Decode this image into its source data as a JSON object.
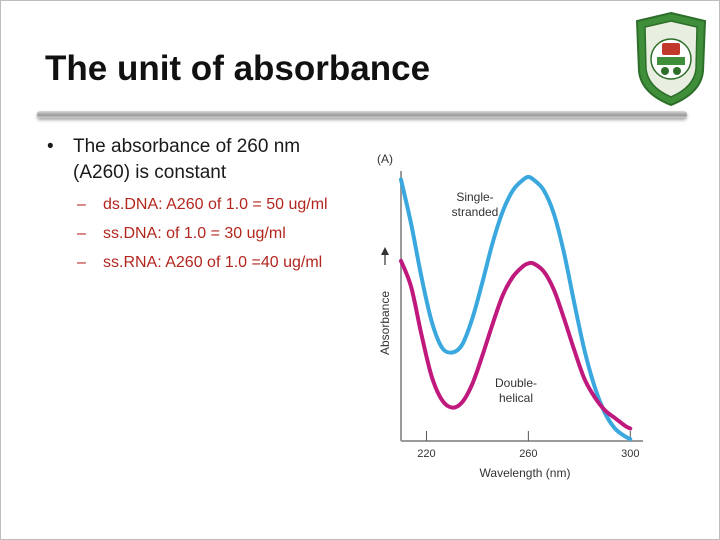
{
  "slide": {
    "title": "The unit of absorbance",
    "bullet": "The absorbance of 260 nm (A260) is constant",
    "sub_bullets": [
      "ds.DNA: A260 of 1.0 = 50 ug/ml",
      "ss.DNA: of 1.0 = 30 ug/ml",
      "ss.RNA: A260 of 1.0 =40 ug/ml"
    ]
  },
  "logo": {
    "icon": "university-seal-icon",
    "color": "#3f8f3a"
  },
  "chart_data": {
    "type": "line",
    "panel_label": "(A)",
    "xlabel": "Wavelength (nm)",
    "ylabel": "Absorbance",
    "xlim": [
      210,
      305
    ],
    "x_ticks": [
      {
        "value": 220,
        "label": "220"
      },
      {
        "value": 260,
        "label": "260"
      },
      {
        "value": 300,
        "label": "300"
      }
    ],
    "grid": false,
    "y_ticks": false,
    "series": [
      {
        "name": "Single-\nstranded",
        "color": "#3aa8de",
        "x": [
          210,
          214,
          218,
          222,
          226,
          230,
          234,
          238,
          242,
          246,
          250,
          254,
          258,
          260,
          262,
          266,
          270,
          274,
          278,
          282,
          286,
          290,
          294,
          298,
          300
        ],
        "y": [
          0.99,
          0.82,
          0.62,
          0.45,
          0.35,
          0.33,
          0.36,
          0.46,
          0.6,
          0.75,
          0.87,
          0.95,
          0.99,
          1.0,
          0.99,
          0.95,
          0.86,
          0.71,
          0.52,
          0.34,
          0.2,
          0.1,
          0.04,
          0.01,
          0.0
        ]
      },
      {
        "name": "Double-\nhelical",
        "color": "#c0197d",
        "x": [
          210,
          214,
          218,
          222,
          226,
          230,
          234,
          238,
          242,
          246,
          250,
          254,
          258,
          260,
          262,
          266,
          270,
          274,
          278,
          282,
          286,
          290,
          294,
          298,
          300
        ],
        "y": [
          0.68,
          0.58,
          0.4,
          0.24,
          0.15,
          0.12,
          0.14,
          0.21,
          0.32,
          0.44,
          0.55,
          0.62,
          0.66,
          0.67,
          0.67,
          0.64,
          0.57,
          0.46,
          0.34,
          0.23,
          0.16,
          0.11,
          0.08,
          0.05,
          0.04
        ]
      }
    ]
  }
}
